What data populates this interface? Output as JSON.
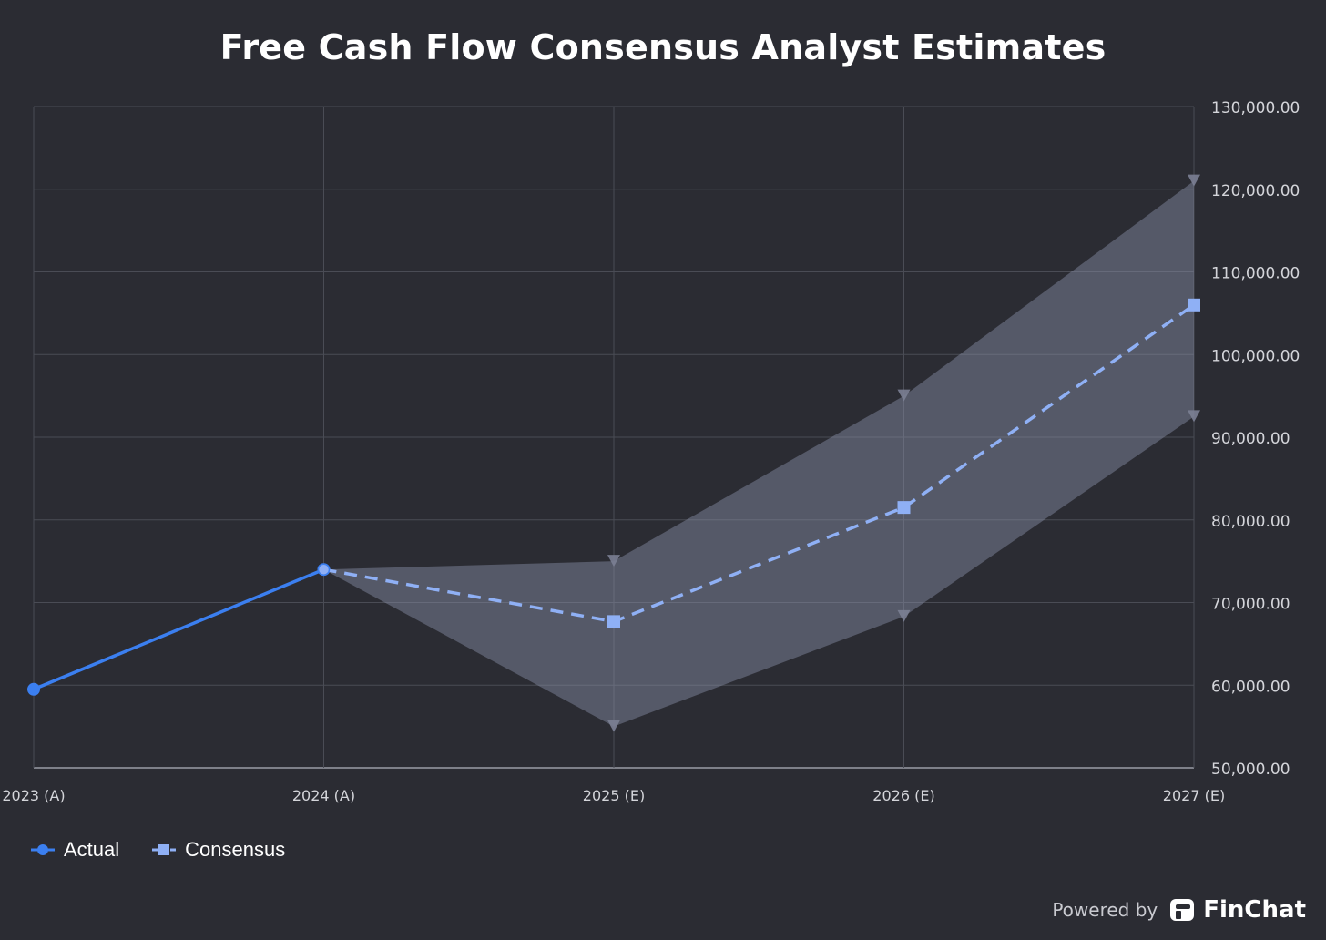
{
  "title": "Free Cash Flow Consensus Analyst Estimates",
  "chart_data": {
    "type": "line",
    "title": "Free Cash Flow Consensus Analyst Estimates",
    "categories": [
      "2023 (A)",
      "2024 (A)",
      "2025 (E)",
      "2026 (E)",
      "2027 (E)"
    ],
    "y_ticks": [
      "50,000.00",
      "60,000.00",
      "70,000.00",
      "80,000.00",
      "90,000.00",
      "100,000.00",
      "110,000.00",
      "120,000.00",
      "130,000.00"
    ],
    "ylim": [
      50000,
      130000
    ],
    "y_axis_position": "right",
    "grid": true,
    "legend_position": "bottom-left",
    "series": [
      {
        "name": "Actual",
        "style": "solid",
        "marker": "circle",
        "color": "#3b7ff0",
        "values": [
          59500,
          74000,
          null,
          null,
          null
        ]
      },
      {
        "name": "Consensus",
        "style": "dashed",
        "marker": "square",
        "color": "#8fb0f5",
        "values": [
          null,
          74000,
          67700,
          81500,
          106000
        ]
      }
    ],
    "range": {
      "high": [
        null,
        74000,
        75000,
        95000,
        121000
      ],
      "low": [
        null,
        74000,
        55000,
        68300,
        92500
      ],
      "color": "#8a90a8"
    }
  },
  "legend": [
    {
      "label": "Actual",
      "color": "#3b7ff0",
      "marker": "circle",
      "dashed": false
    },
    {
      "label": "Consensus",
      "color": "#8fb0f5",
      "marker": "square",
      "dashed": true
    }
  ],
  "footer": {
    "powered_by": "Powered by",
    "brand": "FinChat",
    "logo_icon": "finchat-logo-icon"
  },
  "colors": {
    "background": "#2b2c33",
    "grid": "#4a4c55",
    "axis_text": "#d4d5da"
  }
}
